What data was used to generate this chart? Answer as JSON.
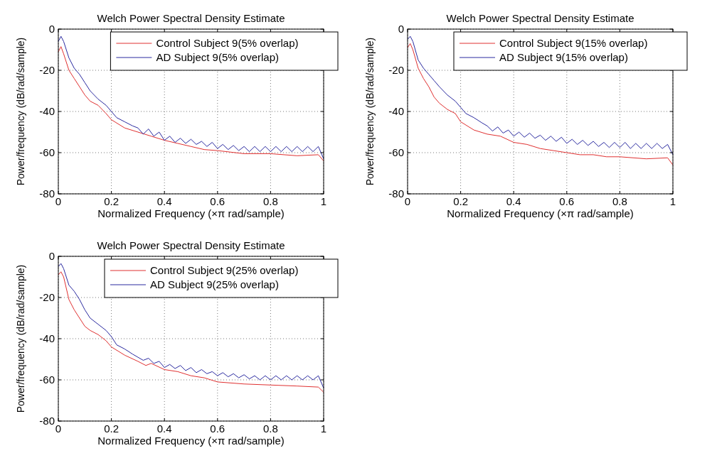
{
  "chart_data": [
    {
      "type": "line",
      "title": "Welch Power Spectral Density Estimate",
      "xlabel": "Normalized Frequency  (×π rad/sample)",
      "ylabel": "Power/frequency (dB/rad/sample)",
      "xlim": [
        0,
        1
      ],
      "xticks": [
        0,
        0.2,
        0.4,
        0.6,
        0.8,
        1
      ],
      "ylim": [
        -80,
        0
      ],
      "yticks": [
        -80,
        -60,
        -40,
        -20,
        0
      ],
      "grid": true,
      "legend": "top right",
      "line_style": "solid",
      "marker": "none",
      "series": [
        {
          "name": "Control Subject 9(5% overlap)",
          "color": "#e03030",
          "x": [
            0,
            0.01,
            0.02,
            0.04,
            0.06,
            0.08,
            0.1,
            0.12,
            0.15,
            0.18,
            0.2,
            0.25,
            0.3,
            0.35,
            0.4,
            0.45,
            0.5,
            0.55,
            0.6,
            0.7,
            0.8,
            0.9,
            0.98,
            1
          ],
          "values": [
            -11,
            -8.5,
            -12,
            -20,
            -24,
            -28,
            -32,
            -35,
            -37,
            -41,
            -44,
            -48,
            -50,
            -52,
            -54,
            -55.5,
            -57,
            -58.5,
            -59,
            -60.5,
            -60.5,
            -61.5,
            -61,
            -64
          ]
        },
        {
          "name": "AD Subject 9(5% overlap)",
          "color": "#2a2aa0",
          "x": [
            0,
            0.01,
            0.02,
            0.04,
            0.06,
            0.08,
            0.1,
            0.12,
            0.15,
            0.18,
            0.2,
            0.22,
            0.25,
            0.28,
            0.3,
            0.32,
            0.34,
            0.36,
            0.38,
            0.4,
            0.42,
            0.44,
            0.46,
            0.48,
            0.5,
            0.52,
            0.54,
            0.56,
            0.58,
            0.6,
            0.62,
            0.64,
            0.66,
            0.68,
            0.7,
            0.72,
            0.74,
            0.76,
            0.78,
            0.8,
            0.82,
            0.84,
            0.86,
            0.88,
            0.9,
            0.92,
            0.94,
            0.96,
            0.98,
            1
          ],
          "values": [
            -6,
            -3.5,
            -6,
            -14,
            -19,
            -22,
            -26,
            -30,
            -34,
            -37,
            -40,
            -43,
            -45,
            -47,
            -48,
            -51,
            -48.5,
            -52,
            -50,
            -54,
            -52,
            -55,
            -53,
            -55.5,
            -53.5,
            -56,
            -54.5,
            -57,
            -55,
            -58,
            -56,
            -58.5,
            -56.5,
            -59,
            -57,
            -59.5,
            -57,
            -59.5,
            -57,
            -59.5,
            -57,
            -59.5,
            -57,
            -59.5,
            -57,
            -59.5,
            -57,
            -59.5,
            -57,
            -63
          ]
        }
      ]
    },
    {
      "type": "line",
      "title": "Welch Power Spectral Density Estimate",
      "xlabel": "Normalized Frequency  (×π rad/sample)",
      "ylabel": "Power/frequency (dB/rad/sample)",
      "xlim": [
        0,
        1
      ],
      "xticks": [
        0,
        0.2,
        0.4,
        0.6,
        0.8,
        1
      ],
      "ylim": [
        -80,
        0
      ],
      "yticks": [
        -80,
        -60,
        -40,
        -20,
        0
      ],
      "grid": true,
      "legend": "top right",
      "line_style": "solid",
      "marker": "none",
      "series": [
        {
          "name": "Control Subject 9(15% overlap)",
          "color": "#e03030",
          "x": [
            0,
            0.01,
            0.02,
            0.04,
            0.06,
            0.08,
            0.1,
            0.12,
            0.15,
            0.18,
            0.2,
            0.25,
            0.3,
            0.35,
            0.4,
            0.45,
            0.5,
            0.55,
            0.6,
            0.65,
            0.7,
            0.75,
            0.8,
            0.9,
            0.98,
            1
          ],
          "values": [
            -9,
            -7,
            -10,
            -19,
            -24,
            -28,
            -33,
            -36,
            -39,
            -41,
            -45,
            -49,
            -51,
            -52,
            -55,
            -56,
            -58,
            -59,
            -60,
            -61,
            -61,
            -62,
            -62,
            -63,
            -62.5,
            -66
          ]
        },
        {
          "name": "AD Subject 9(15% overlap)",
          "color": "#2a2aa0",
          "x": [
            0,
            0.01,
            0.02,
            0.04,
            0.06,
            0.08,
            0.1,
            0.12,
            0.15,
            0.18,
            0.2,
            0.22,
            0.25,
            0.28,
            0.3,
            0.32,
            0.34,
            0.36,
            0.38,
            0.4,
            0.42,
            0.44,
            0.46,
            0.48,
            0.5,
            0.52,
            0.54,
            0.56,
            0.58,
            0.6,
            0.62,
            0.64,
            0.66,
            0.68,
            0.7,
            0.72,
            0.74,
            0.76,
            0.78,
            0.8,
            0.82,
            0.84,
            0.86,
            0.88,
            0.9,
            0.92,
            0.94,
            0.96,
            0.98,
            1
          ],
          "values": [
            -5,
            -3.5,
            -6,
            -15,
            -19,
            -22,
            -25,
            -28,
            -32,
            -35,
            -38,
            -41,
            -43,
            -45.5,
            -47,
            -49.5,
            -47.5,
            -50.5,
            -49,
            -52,
            -50,
            -52.5,
            -50.5,
            -53,
            -51.5,
            -54,
            -52,
            -54.5,
            -52.5,
            -55.5,
            -53.5,
            -56,
            -54,
            -56.5,
            -54.5,
            -57,
            -55,
            -57.5,
            -55,
            -57.5,
            -55,
            -58,
            -55.5,
            -58,
            -55.5,
            -58,
            -55.5,
            -58,
            -56,
            -61
          ]
        }
      ]
    },
    {
      "type": "line",
      "title": "Welch Power Spectral Density Estimate",
      "xlabel": "Normalized Frequency  (×π rad/sample)",
      "ylabel": "Power/frequency (dB/rad/sample)",
      "xlim": [
        0,
        1
      ],
      "xticks": [
        0,
        0.2,
        0.4,
        0.6,
        0.8,
        1
      ],
      "ylim": [
        -80,
        0
      ],
      "yticks": [
        -80,
        -60,
        -40,
        -20,
        0
      ],
      "grid": true,
      "legend": "top right",
      "line_style": "solid",
      "marker": "none",
      "series": [
        {
          "name": "Control Subject 9(25% overlap)",
          "color": "#e03030",
          "x": [
            0,
            0.01,
            0.02,
            0.04,
            0.06,
            0.08,
            0.1,
            0.12,
            0.15,
            0.18,
            0.2,
            0.25,
            0.3,
            0.33,
            0.35,
            0.4,
            0.45,
            0.5,
            0.55,
            0.6,
            0.7,
            0.8,
            0.9,
            0.98,
            1
          ],
          "values": [
            -9,
            -7.5,
            -10,
            -21,
            -26,
            -30,
            -34,
            -36,
            -38,
            -41,
            -44,
            -48,
            -51,
            -53,
            -52,
            -55,
            -56,
            -58,
            -59,
            -61,
            -62,
            -62.5,
            -63,
            -63.5,
            -66
          ]
        },
        {
          "name": "AD Subject 9(25% overlap)",
          "color": "#2a2aa0",
          "x": [
            0,
            0.01,
            0.02,
            0.04,
            0.06,
            0.08,
            0.1,
            0.12,
            0.15,
            0.18,
            0.2,
            0.22,
            0.25,
            0.28,
            0.3,
            0.32,
            0.34,
            0.36,
            0.38,
            0.4,
            0.42,
            0.44,
            0.46,
            0.48,
            0.5,
            0.52,
            0.54,
            0.56,
            0.58,
            0.6,
            0.62,
            0.64,
            0.66,
            0.68,
            0.7,
            0.72,
            0.74,
            0.76,
            0.78,
            0.8,
            0.82,
            0.84,
            0.86,
            0.88,
            0.9,
            0.92,
            0.94,
            0.96,
            0.98,
            1
          ],
          "values": [
            -5,
            -3.5,
            -6,
            -14,
            -17,
            -21,
            -26,
            -30,
            -33,
            -36,
            -39,
            -43,
            -45,
            -47.5,
            -49,
            -50.5,
            -49.5,
            -52,
            -51,
            -54,
            -52.5,
            -54.5,
            -53,
            -55.5,
            -54,
            -56.5,
            -55,
            -57,
            -56,
            -58,
            -56.5,
            -58.5,
            -57,
            -59,
            -57.5,
            -59.5,
            -58,
            -60,
            -58,
            -60,
            -58,
            -60,
            -58,
            -60,
            -58,
            -60,
            -58,
            -60,
            -58,
            -64
          ]
        }
      ]
    }
  ]
}
